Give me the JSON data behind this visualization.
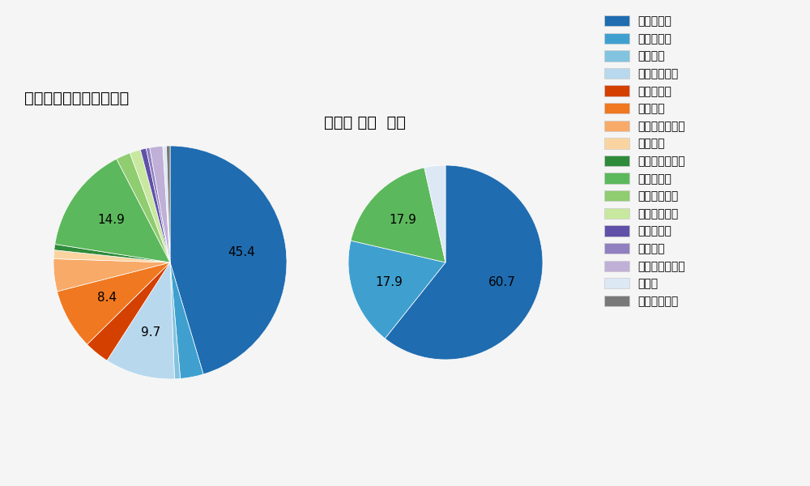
{
  "left_title": "セ・リーグ全プレイヤー",
  "right_title": "大瀬良 大地  選手",
  "pitch_types": [
    "ストレート",
    "ツーシーム",
    "シュート",
    "カットボール",
    "スプリット",
    "フォーク",
    "チェンジアップ",
    "シンカー",
    "高速スライダー",
    "スライダー",
    "縦スライダー",
    "パワーカーブ",
    "スクリュー",
    "ナックル",
    "ナックルカーブ",
    "カーブ",
    "スローカーブ"
  ],
  "colors": [
    "#1f6cb0",
    "#3fa0d0",
    "#82c4e0",
    "#b8d8ee",
    "#d44000",
    "#f07820",
    "#f8aa68",
    "#fad4a0",
    "#2e8b3a",
    "#5cb85c",
    "#90cc70",
    "#c8e8a0",
    "#6050a8",
    "#9080c0",
    "#c0b0d8",
    "#dce8f4",
    "#787878"
  ],
  "left_values": [
    45.4,
    3.2,
    0.8,
    9.7,
    3.5,
    8.4,
    4.5,
    1.2,
    0.8,
    14.9,
    2.0,
    1.5,
    0.8,
    0.5,
    1.8,
    0.5,
    0.5
  ],
  "left_show_labels": [
    true,
    false,
    false,
    true,
    false,
    true,
    false,
    false,
    false,
    true,
    false,
    false,
    false,
    false,
    false,
    false,
    false
  ],
  "left_label_texts": [
    "45.4",
    "",
    "",
    "9.7",
    "",
    "8.4",
    "",
    "",
    "",
    "14.9",
    "",
    "",
    "",
    "",
    "",
    "",
    ""
  ],
  "right_values": [
    60.7,
    17.9,
    0.0,
    0.0,
    0.0,
    0.0,
    0.0,
    0.0,
    0.0,
    17.9,
    0.0,
    0.0,
    0.0,
    0.0,
    0.0,
    3.5,
    0.0
  ],
  "right_show_labels": [
    true,
    true,
    false,
    false,
    false,
    false,
    false,
    false,
    false,
    true,
    false,
    false,
    false,
    false,
    false,
    false,
    false
  ],
  "right_label_texts": [
    "60.7",
    "17.9",
    "",
    "",
    "",
    "",
    "",
    "",
    "",
    "17.9",
    "",
    "",
    "",
    "",
    "",
    "",
    ""
  ],
  "background_color": "#f5f5f5",
  "label_fontsize": 11,
  "title_fontsize": 14,
  "legend_fontsize": 10
}
